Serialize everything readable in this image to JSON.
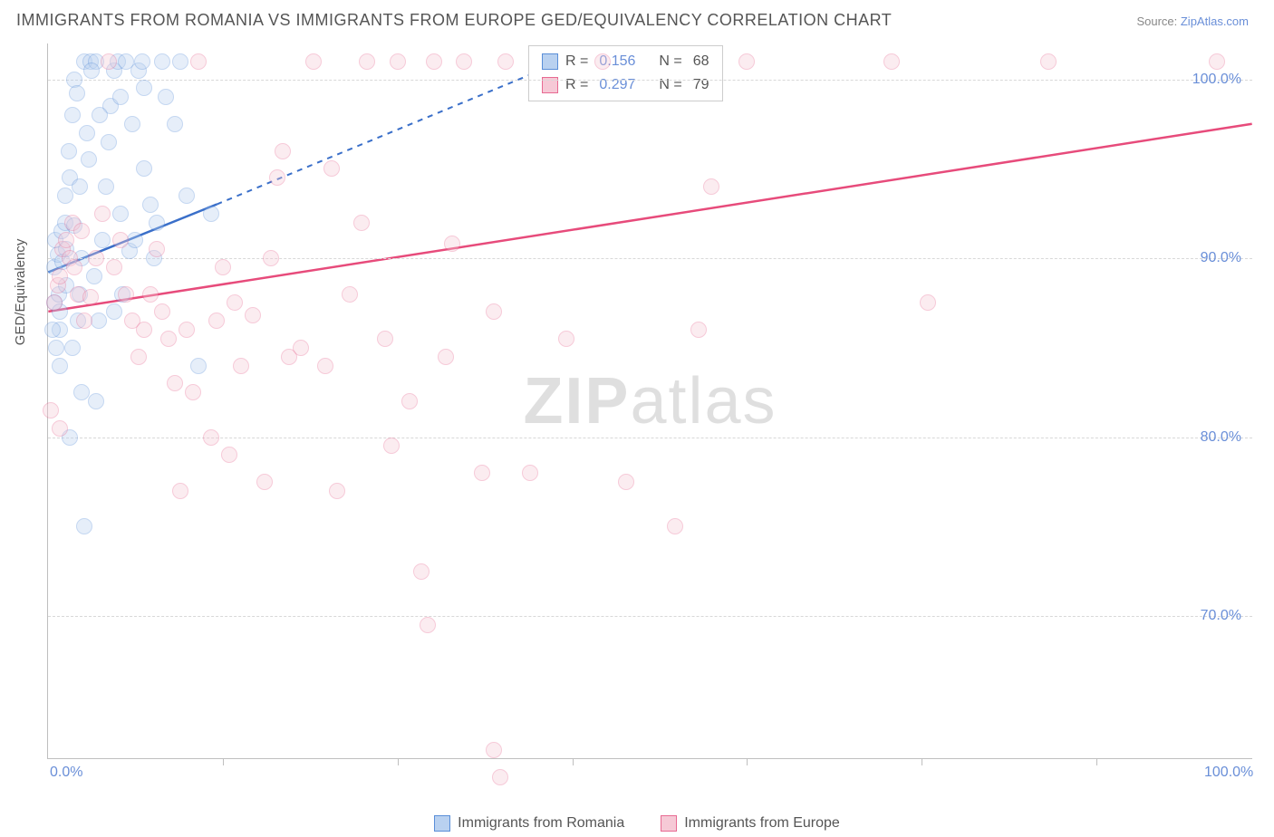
{
  "title": "IMMIGRANTS FROM ROMANIA VS IMMIGRANTS FROM EUROPE GED/EQUIVALENCY CORRELATION CHART",
  "source_label": "Source: ",
  "source_link": "ZipAtlas.com",
  "y_axis_label": "GED/Equivalency",
  "watermark_bold": "ZIP",
  "watermark_light": "atlas",
  "chart": {
    "type": "scatter",
    "xlim": [
      0,
      100
    ],
    "ylim": [
      62,
      102
    ],
    "x_ticks": [
      0,
      100
    ],
    "x_tick_labels": [
      "0.0%",
      "100.0%"
    ],
    "x_minor_ticks": [
      14.5,
      29,
      43.5,
      58,
      72.5,
      87
    ],
    "y_ticks": [
      70,
      80,
      90,
      100
    ],
    "y_tick_labels": [
      "70.0%",
      "80.0%",
      "90.0%",
      "100.0%"
    ],
    "background_color": "#ffffff",
    "grid_color": "#d8d8d8",
    "axis_color": "#bfbfbf",
    "title_fontsize": 18,
    "label_fontsize": 15,
    "tick_fontsize": 16,
    "point_radius": 9,
    "point_opacity": 0.35,
    "series": [
      {
        "name": "Immigrants from Romania",
        "color_fill": "#b9d1f0",
        "color_stroke": "#5a8ed8",
        "trend_color": "#3a6fc9",
        "R": 0.156,
        "N": 68,
        "trend": {
          "x1": 0,
          "y1": 89.2,
          "x2": 14,
          "y2": 93.0,
          "dash_x2": 42,
          "dash_y2": 100.8
        },
        "points": [
          [
            0.5,
            87.5
          ],
          [
            0.5,
            89.5
          ],
          [
            0.8,
            90.2
          ],
          [
            0.6,
            91.0
          ],
          [
            0.9,
            88.0
          ],
          [
            1.0,
            86.0
          ],
          [
            1.2,
            89.8
          ],
          [
            1.1,
            91.5
          ],
          [
            1.4,
            92.0
          ],
          [
            1.5,
            90.5
          ],
          [
            1.5,
            88.5
          ],
          [
            1.8,
            94.5
          ],
          [
            1.7,
            96.0
          ],
          [
            2.0,
            98.0
          ],
          [
            2.2,
            100.0
          ],
          [
            2.4,
            99.2
          ],
          [
            2.0,
            85.0
          ],
          [
            2.5,
            86.5
          ],
          [
            2.6,
            88.0
          ],
          [
            2.8,
            90.0
          ],
          [
            3.0,
            101.0
          ],
          [
            3.5,
            101.0
          ],
          [
            4.0,
            101.0
          ],
          [
            3.2,
            97.0
          ],
          [
            3.4,
            95.5
          ],
          [
            3.8,
            89.0
          ],
          [
            4.0,
            82.0
          ],
          [
            4.2,
            86.5
          ],
          [
            4.5,
            91.0
          ],
          [
            5.0,
            96.5
          ],
          [
            5.2,
            98.5
          ],
          [
            5.5,
            100.5
          ],
          [
            5.8,
            101.0
          ],
          [
            6.0,
            99.0
          ],
          [
            6.5,
            101.0
          ],
          [
            7.0,
            97.5
          ],
          [
            6.2,
            88.0
          ],
          [
            6.8,
            90.4
          ],
          [
            7.5,
            100.5
          ],
          [
            7.8,
            101.0
          ],
          [
            8.0,
            95.0
          ],
          [
            8.0,
            99.5
          ],
          [
            8.5,
            93.0
          ],
          [
            9.0,
            92.0
          ],
          [
            9.5,
            101.0
          ],
          [
            9.8,
            99.0
          ],
          [
            10.5,
            97.5
          ],
          [
            11.0,
            101.0
          ],
          [
            11.5,
            93.5
          ],
          [
            2.8,
            82.5
          ],
          [
            1.0,
            84.0
          ],
          [
            3.0,
            75.0
          ],
          [
            1.8,
            80.0
          ],
          [
            0.4,
            86.0
          ],
          [
            0.7,
            85.0
          ],
          [
            1.0,
            87.0
          ],
          [
            1.4,
            93.5
          ],
          [
            2.2,
            91.8
          ],
          [
            2.6,
            94.0
          ],
          [
            4.8,
            94.0
          ],
          [
            5.5,
            87.0
          ],
          [
            6.0,
            92.5
          ],
          [
            7.2,
            91.0
          ],
          [
            8.8,
            90.0
          ],
          [
            12.5,
            84.0
          ],
          [
            13.5,
            92.5
          ],
          [
            3.6,
            100.5
          ],
          [
            4.3,
            98.0
          ]
        ]
      },
      {
        "name": "Immigrants from Europe",
        "color_fill": "#f6c9d6",
        "color_stroke": "#e86a92",
        "trend_color": "#e74b7b",
        "R": 0.297,
        "N": 79,
        "trend": {
          "x1": 0,
          "y1": 87.0,
          "x2": 100,
          "y2": 97.5
        },
        "points": [
          [
            0.5,
            87.5
          ],
          [
            0.8,
            88.5
          ],
          [
            1.0,
            89.0
          ],
          [
            1.2,
            90.5
          ],
          [
            1.5,
            91.0
          ],
          [
            1.8,
            90.0
          ],
          [
            2.0,
            92.0
          ],
          [
            2.2,
            89.5
          ],
          [
            2.5,
            88.0
          ],
          [
            2.8,
            91.5
          ],
          [
            3.0,
            86.5
          ],
          [
            3.5,
            87.8
          ],
          [
            4.0,
            90.0
          ],
          [
            4.5,
            92.5
          ],
          [
            5.0,
            101.0
          ],
          [
            5.5,
            89.5
          ],
          [
            6.0,
            91.0
          ],
          [
            6.5,
            88.0
          ],
          [
            7.0,
            86.5
          ],
          [
            7.5,
            84.5
          ],
          [
            8.0,
            86.0
          ],
          [
            8.5,
            88.0
          ],
          [
            9.0,
            90.5
          ],
          [
            9.5,
            87.0
          ],
          [
            10.0,
            85.5
          ],
          [
            10.5,
            83.0
          ],
          [
            11.0,
            77.0
          ],
          [
            11.5,
            86.0
          ],
          [
            12.0,
            82.5
          ],
          [
            12.5,
            101.0
          ],
          [
            13.5,
            80.0
          ],
          [
            14.0,
            86.5
          ],
          [
            14.5,
            89.5
          ],
          [
            15.0,
            79.0
          ],
          [
            15.5,
            87.5
          ],
          [
            16.0,
            84.0
          ],
          [
            17.0,
            86.8
          ],
          [
            18.0,
            77.5
          ],
          [
            18.5,
            90.0
          ],
          [
            19.0,
            94.5
          ],
          [
            19.5,
            96.0
          ],
          [
            20.0,
            84.5
          ],
          [
            21.0,
            85.0
          ],
          [
            22.0,
            101.0
          ],
          [
            23.0,
            84.0
          ],
          [
            23.5,
            95.0
          ],
          [
            24.0,
            77.0
          ],
          [
            25.0,
            88.0
          ],
          [
            26.0,
            92.0
          ],
          [
            26.5,
            101.0
          ],
          [
            28.0,
            85.5
          ],
          [
            28.5,
            79.5
          ],
          [
            29.0,
            101.0
          ],
          [
            30.0,
            82.0
          ],
          [
            31.0,
            72.5
          ],
          [
            31.5,
            69.5
          ],
          [
            32.0,
            101.0
          ],
          [
            33.0,
            84.5
          ],
          [
            33.5,
            90.8
          ],
          [
            34.5,
            101.0
          ],
          [
            36.0,
            78.0
          ],
          [
            37.0,
            87.0
          ],
          [
            37.5,
            61.0
          ],
          [
            38.0,
            101.0
          ],
          [
            40.0,
            78.0
          ],
          [
            43.0,
            85.5
          ],
          [
            46.0,
            101.0
          ],
          [
            48.0,
            77.5
          ],
          [
            52.0,
            75.0
          ],
          [
            54.0,
            86.0
          ],
          [
            55.0,
            94.0
          ],
          [
            58.0,
            101.0
          ],
          [
            70.0,
            101.0
          ],
          [
            73.0,
            87.5
          ],
          [
            83.0,
            101.0
          ],
          [
            97.0,
            101.0
          ],
          [
            0.2,
            81.5
          ],
          [
            1.0,
            80.5
          ],
          [
            37.0,
            62.5
          ]
        ]
      }
    ]
  },
  "legend_bottom": [
    {
      "label": "Immigrants from Romania",
      "fill": "#b9d1f0",
      "stroke": "#5a8ed8"
    },
    {
      "label": "Immigrants from Europe",
      "fill": "#f6c9d6",
      "stroke": "#e86a92"
    }
  ]
}
